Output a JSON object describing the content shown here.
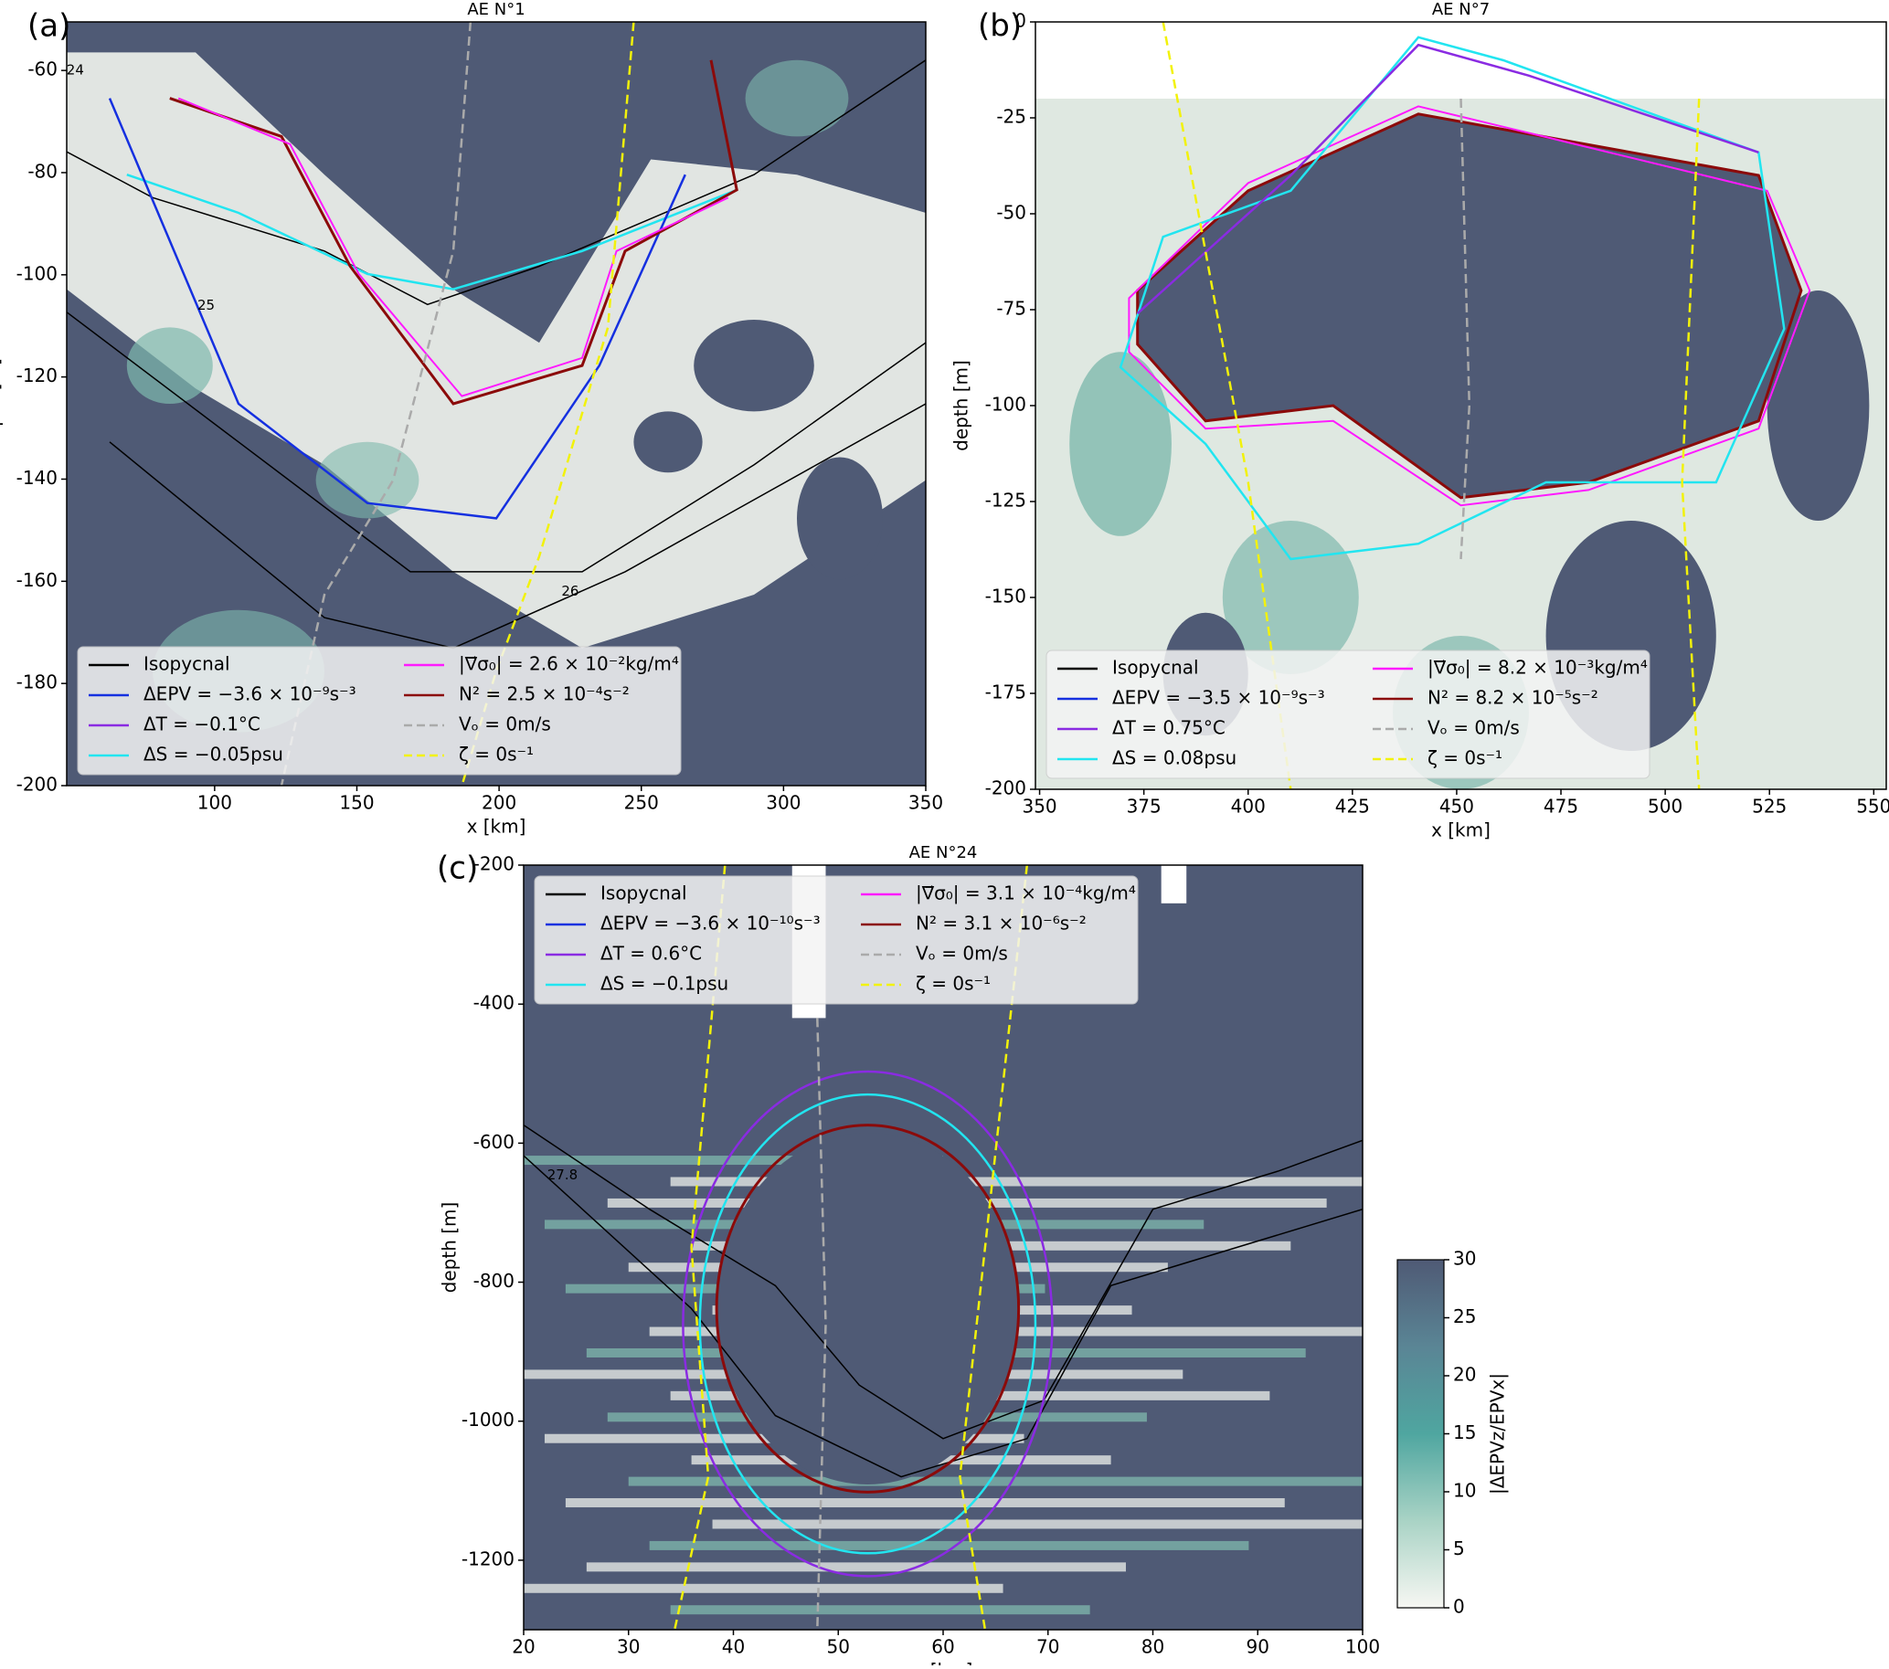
{
  "chart_data": [
    {
      "type": "heatmap",
      "panel_label": "(a)",
      "title": "AE N°1",
      "xlabel": "x [km]",
      "ylabel": "depth [m]",
      "xlim": [
        48,
        350
      ],
      "ylim": [
        -200,
        -50.5
      ],
      "xticks": [
        100,
        150,
        200,
        250,
        300,
        350
      ],
      "yticks": [
        -60,
        -80,
        -100,
        -120,
        -140,
        -160,
        -180,
        -200
      ],
      "legend_loc": "lower left",
      "legend": [
        {
          "label": "Isopycnal",
          "color": "#000000",
          "dashed": false
        },
        {
          "label": "ΔEPV = −3.6 × 10⁻⁹s⁻³",
          "color": "#1530e0",
          "dashed": false
        },
        {
          "label": "ΔT = −0.1°C",
          "color": "#8a2be2",
          "dashed": false
        },
        {
          "label": "ΔS = −0.05psu",
          "color": "#22e5f0",
          "dashed": false
        },
        {
          "label": "|∇⃗σ₀| = 2.6 × 10⁻²kg/m⁴",
          "color": "#ff1aff",
          "dashed": false
        },
        {
          "label": "N² = 2.5 × 10⁻⁴s⁻²",
          "color": "#8b0a0a",
          "dashed": false
        },
        {
          "label": "Vₒ = 0m/s",
          "color": "#aaaaaa",
          "dashed": true
        },
        {
          "label": "ζ = 0s⁻¹",
          "color": "#f2f20a",
          "dashed": true
        }
      ],
      "annotations": [
        {
          "text": "24",
          "x": 51,
          "y": -60
        },
        {
          "text": "25",
          "x": 97,
          "y": -106
        },
        {
          "text": "26",
          "x": 225,
          "y": -162
        }
      ]
    },
    {
      "type": "heatmap",
      "panel_label": "(b)",
      "title": "AE N°7",
      "xlabel": "x [km]",
      "ylabel": "depth [m]",
      "xlim": [
        349,
        553
      ],
      "ylim": [
        -200,
        0
      ],
      "xticks": [
        350,
        375,
        400,
        425,
        450,
        475,
        500,
        525,
        550
      ],
      "yticks": [
        0,
        -25,
        -50,
        -75,
        -100,
        -125,
        -150,
        -175,
        -200
      ],
      "legend_loc": "lower left",
      "legend": [
        {
          "label": "Isopycnal",
          "color": "#000000",
          "dashed": false
        },
        {
          "label": "ΔEPV = −3.5 × 10⁻⁹s⁻³",
          "color": "#1530e0",
          "dashed": false
        },
        {
          "label": "ΔT = 0.75°C",
          "color": "#8a2be2",
          "dashed": false
        },
        {
          "label": "ΔS = 0.08psu",
          "color": "#22e5f0",
          "dashed": false
        },
        {
          "label": "|∇⃗σ₀| = 8.2 × 10⁻³kg/m⁴",
          "color": "#ff1aff",
          "dashed": false
        },
        {
          "label": "N² = 8.2 × 10⁻⁵s⁻²",
          "color": "#8b0a0a",
          "dashed": false
        },
        {
          "label": "Vₒ = 0m/s",
          "color": "#aaaaaa",
          "dashed": true
        },
        {
          "label": "ζ = 0s⁻¹",
          "color": "#f2f20a",
          "dashed": true
        }
      ],
      "annotations": []
    },
    {
      "type": "heatmap",
      "panel_label": "(c)",
      "title": "AE N°24",
      "xlabel": "x [km]",
      "ylabel": "depth [m]",
      "xlim": [
        20,
        100
      ],
      "ylim": [
        -1300,
        -200
      ],
      "xticks": [
        20,
        30,
        40,
        50,
        60,
        70,
        80,
        90,
        100
      ],
      "yticks": [
        -200,
        -400,
        -600,
        -800,
        -1000,
        -1200
      ],
      "legend_loc": "upper left",
      "legend": [
        {
          "label": "Isopycnal",
          "color": "#000000",
          "dashed": false
        },
        {
          "label": "ΔEPV = −3.6 × 10⁻¹⁰s⁻³",
          "color": "#1530e0",
          "dashed": false
        },
        {
          "label": "ΔT = 0.6°C",
          "color": "#8a2be2",
          "dashed": false
        },
        {
          "label": "ΔS = −0.1psu",
          "color": "#22e5f0",
          "dashed": false
        },
        {
          "label": "|∇⃗σ₀| = 3.1 × 10⁻⁴kg/m⁴",
          "color": "#ff1aff",
          "dashed": false
        },
        {
          "label": "N² = 3.1 × 10⁻⁶s⁻²",
          "color": "#8b0a0a",
          "dashed": false
        },
        {
          "label": "Vₒ = 0m/s",
          "color": "#aaaaaa",
          "dashed": true
        },
        {
          "label": "ζ = 0s⁻¹",
          "color": "#f2f20a",
          "dashed": true
        }
      ],
      "annotations": [
        {
          "text": "27.8",
          "x": 23.7,
          "y": -646
        }
      ],
      "colorbar": {
        "label": "|ΔEPVz/EPVx|",
        "lim": [
          0,
          30
        ],
        "ticks": [
          0,
          5,
          10,
          15,
          20,
          25,
          30
        ],
        "colors": [
          "#f7f7f3",
          "#a9d3c5",
          "#4fa6a0",
          "#5a8595",
          "#4f5a75"
        ]
      }
    }
  ]
}
